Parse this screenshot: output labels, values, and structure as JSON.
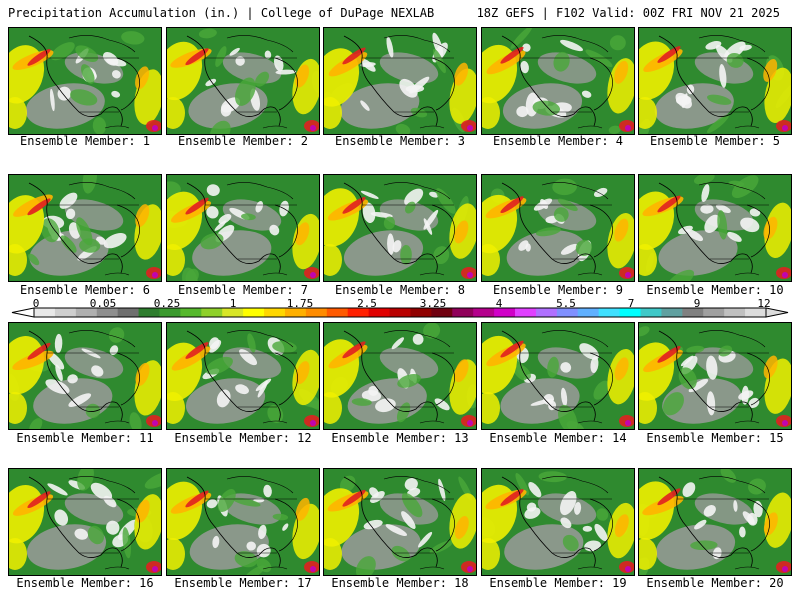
{
  "header": {
    "left": "Precipitation Accumulation (in.) | College of DuPage NEXLAB",
    "right": "18Z GEFS | F102 Valid: 00Z FRI NOV 21 2025"
  },
  "label_prefix": "Ensemble Member: ",
  "members": [
    1,
    2,
    3,
    4,
    5,
    6,
    7,
    8,
    9,
    10,
    11,
    12,
    13,
    14,
    15,
    16,
    17,
    18,
    19,
    20
  ],
  "legend": {
    "ticks": [
      "0",
      "0.05",
      "0.25",
      "1",
      "1.75",
      "2.5",
      "3.25",
      "4",
      "5.5",
      "7",
      "9",
      "12"
    ],
    "colors": [
      "#e8e8e8",
      "#cfcfcf",
      "#b0b0b0",
      "#8f8f8f",
      "#6f6f6f",
      "#2e7d2e",
      "#3b9a2e",
      "#56b82c",
      "#8fd02a",
      "#d8e628",
      "#ffff00",
      "#ffd700",
      "#ffb000",
      "#ff8c00",
      "#ff5a00",
      "#ff2000",
      "#e00000",
      "#b80000",
      "#900000",
      "#700010",
      "#90005a",
      "#b4008c",
      "#d000c8",
      "#e040ff",
      "#b070ff",
      "#8090ff",
      "#60b0ff",
      "#40e0ff",
      "#00ffff",
      "#40c8c8",
      "#60a0a0",
      "#808080",
      "#a0a0a0",
      "#c0c0c0",
      "#dcdcdc"
    ]
  },
  "palette": {
    "ocean_green": "#2f8a2f",
    "light_green": "#4aa83a",
    "yellow": "#f0f000",
    "orange": "#ffb400",
    "red": "#e02020",
    "gray_land": "#9a9a9a",
    "white_snow": "#f4f4f4",
    "magenta": "#c000c0"
  }
}
